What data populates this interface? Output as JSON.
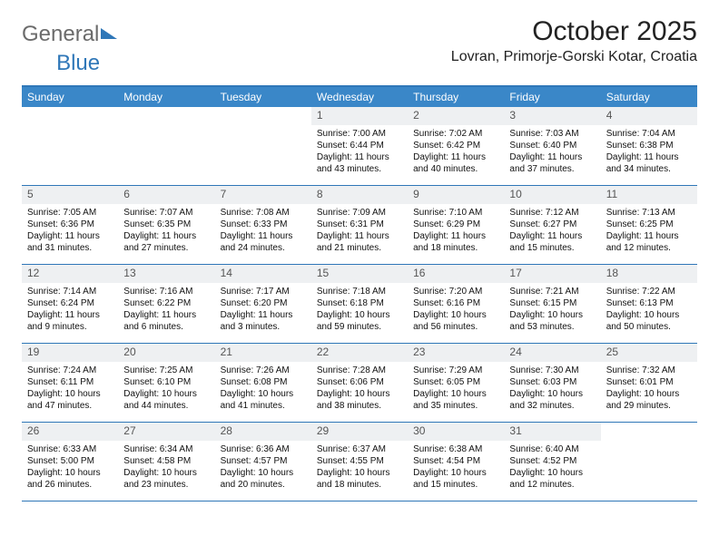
{
  "brand": {
    "part1": "General",
    "part2": "Blue"
  },
  "title": "October 2025",
  "location": "Lovran, Primorje-Gorski Kotar, Croatia",
  "colors": {
    "header_bar": "#3a87c8",
    "rule": "#2f77b8",
    "daynum_bg": "#eef0f2",
    "text": "#111111",
    "brand_gray": "#6b6b6b",
    "brand_blue": "#2f77b8",
    "background": "#ffffff"
  },
  "dow": [
    "Sunday",
    "Monday",
    "Tuesday",
    "Wednesday",
    "Thursday",
    "Friday",
    "Saturday"
  ],
  "weeks": [
    [
      {
        "n": "",
        "lines": []
      },
      {
        "n": "",
        "lines": []
      },
      {
        "n": "",
        "lines": []
      },
      {
        "n": "1",
        "lines": [
          "Sunrise: 7:00 AM",
          "Sunset: 6:44 PM",
          "Daylight: 11 hours and 43 minutes."
        ]
      },
      {
        "n": "2",
        "lines": [
          "Sunrise: 7:02 AM",
          "Sunset: 6:42 PM",
          "Daylight: 11 hours and 40 minutes."
        ]
      },
      {
        "n": "3",
        "lines": [
          "Sunrise: 7:03 AM",
          "Sunset: 6:40 PM",
          "Daylight: 11 hours and 37 minutes."
        ]
      },
      {
        "n": "4",
        "lines": [
          "Sunrise: 7:04 AM",
          "Sunset: 6:38 PM",
          "Daylight: 11 hours and 34 minutes."
        ]
      }
    ],
    [
      {
        "n": "5",
        "lines": [
          "Sunrise: 7:05 AM",
          "Sunset: 6:36 PM",
          "Daylight: 11 hours and 31 minutes."
        ]
      },
      {
        "n": "6",
        "lines": [
          "Sunrise: 7:07 AM",
          "Sunset: 6:35 PM",
          "Daylight: 11 hours and 27 minutes."
        ]
      },
      {
        "n": "7",
        "lines": [
          "Sunrise: 7:08 AM",
          "Sunset: 6:33 PM",
          "Daylight: 11 hours and 24 minutes."
        ]
      },
      {
        "n": "8",
        "lines": [
          "Sunrise: 7:09 AM",
          "Sunset: 6:31 PM",
          "Daylight: 11 hours and 21 minutes."
        ]
      },
      {
        "n": "9",
        "lines": [
          "Sunrise: 7:10 AM",
          "Sunset: 6:29 PM",
          "Daylight: 11 hours and 18 minutes."
        ]
      },
      {
        "n": "10",
        "lines": [
          "Sunrise: 7:12 AM",
          "Sunset: 6:27 PM",
          "Daylight: 11 hours and 15 minutes."
        ]
      },
      {
        "n": "11",
        "lines": [
          "Sunrise: 7:13 AM",
          "Sunset: 6:25 PM",
          "Daylight: 11 hours and 12 minutes."
        ]
      }
    ],
    [
      {
        "n": "12",
        "lines": [
          "Sunrise: 7:14 AM",
          "Sunset: 6:24 PM",
          "Daylight: 11 hours and 9 minutes."
        ]
      },
      {
        "n": "13",
        "lines": [
          "Sunrise: 7:16 AM",
          "Sunset: 6:22 PM",
          "Daylight: 11 hours and 6 minutes."
        ]
      },
      {
        "n": "14",
        "lines": [
          "Sunrise: 7:17 AM",
          "Sunset: 6:20 PM",
          "Daylight: 11 hours and 3 minutes."
        ]
      },
      {
        "n": "15",
        "lines": [
          "Sunrise: 7:18 AM",
          "Sunset: 6:18 PM",
          "Daylight: 10 hours and 59 minutes."
        ]
      },
      {
        "n": "16",
        "lines": [
          "Sunrise: 7:20 AM",
          "Sunset: 6:16 PM",
          "Daylight: 10 hours and 56 minutes."
        ]
      },
      {
        "n": "17",
        "lines": [
          "Sunrise: 7:21 AM",
          "Sunset: 6:15 PM",
          "Daylight: 10 hours and 53 minutes."
        ]
      },
      {
        "n": "18",
        "lines": [
          "Sunrise: 7:22 AM",
          "Sunset: 6:13 PM",
          "Daylight: 10 hours and 50 minutes."
        ]
      }
    ],
    [
      {
        "n": "19",
        "lines": [
          "Sunrise: 7:24 AM",
          "Sunset: 6:11 PM",
          "Daylight: 10 hours and 47 minutes."
        ]
      },
      {
        "n": "20",
        "lines": [
          "Sunrise: 7:25 AM",
          "Sunset: 6:10 PM",
          "Daylight: 10 hours and 44 minutes."
        ]
      },
      {
        "n": "21",
        "lines": [
          "Sunrise: 7:26 AM",
          "Sunset: 6:08 PM",
          "Daylight: 10 hours and 41 minutes."
        ]
      },
      {
        "n": "22",
        "lines": [
          "Sunrise: 7:28 AM",
          "Sunset: 6:06 PM",
          "Daylight: 10 hours and 38 minutes."
        ]
      },
      {
        "n": "23",
        "lines": [
          "Sunrise: 7:29 AM",
          "Sunset: 6:05 PM",
          "Daylight: 10 hours and 35 minutes."
        ]
      },
      {
        "n": "24",
        "lines": [
          "Sunrise: 7:30 AM",
          "Sunset: 6:03 PM",
          "Daylight: 10 hours and 32 minutes."
        ]
      },
      {
        "n": "25",
        "lines": [
          "Sunrise: 7:32 AM",
          "Sunset: 6:01 PM",
          "Daylight: 10 hours and 29 minutes."
        ]
      }
    ],
    [
      {
        "n": "26",
        "lines": [
          "Sunrise: 6:33 AM",
          "Sunset: 5:00 PM",
          "Daylight: 10 hours and 26 minutes."
        ]
      },
      {
        "n": "27",
        "lines": [
          "Sunrise: 6:34 AM",
          "Sunset: 4:58 PM",
          "Daylight: 10 hours and 23 minutes."
        ]
      },
      {
        "n": "28",
        "lines": [
          "Sunrise: 6:36 AM",
          "Sunset: 4:57 PM",
          "Daylight: 10 hours and 20 minutes."
        ]
      },
      {
        "n": "29",
        "lines": [
          "Sunrise: 6:37 AM",
          "Sunset: 4:55 PM",
          "Daylight: 10 hours and 18 minutes."
        ]
      },
      {
        "n": "30",
        "lines": [
          "Sunrise: 6:38 AM",
          "Sunset: 4:54 PM",
          "Daylight: 10 hours and 15 minutes."
        ]
      },
      {
        "n": "31",
        "lines": [
          "Sunrise: 6:40 AM",
          "Sunset: 4:52 PM",
          "Daylight: 10 hours and 12 minutes."
        ]
      },
      {
        "n": "",
        "lines": []
      }
    ]
  ]
}
